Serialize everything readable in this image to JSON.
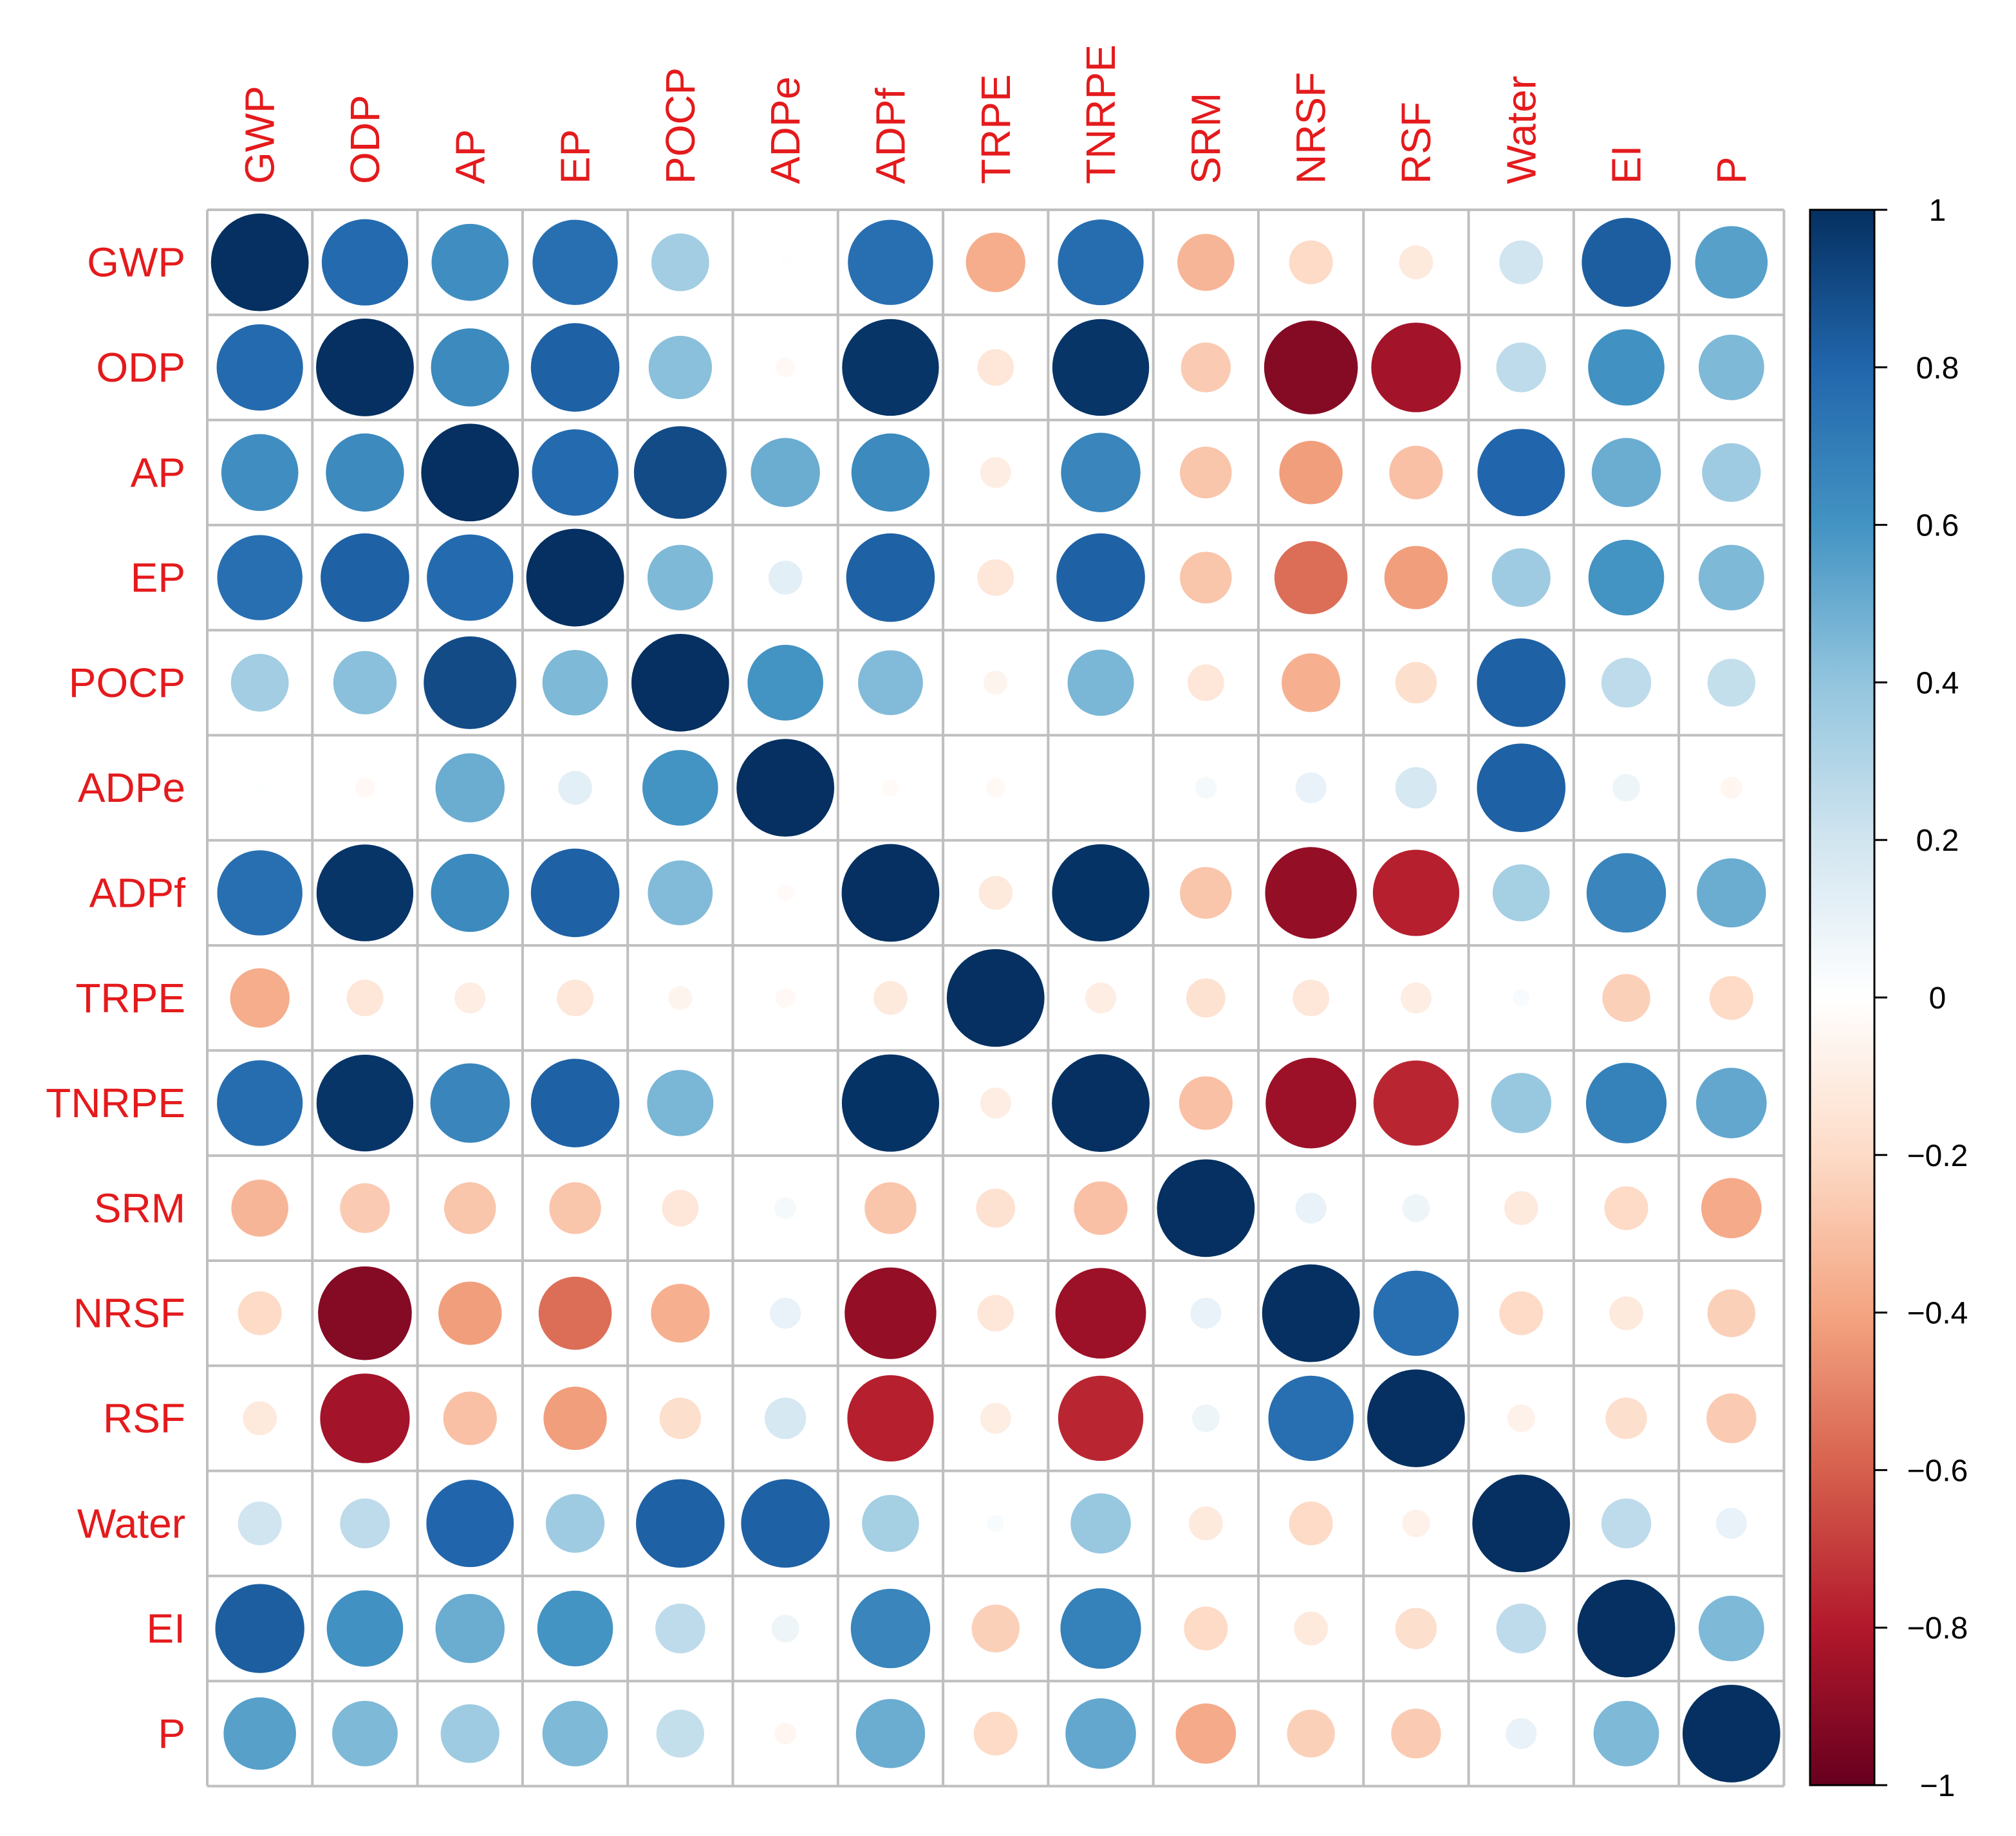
{
  "chart_data": {
    "type": "heatmap",
    "title": "",
    "xlabel": "",
    "ylabel": "",
    "variables": [
      "GWP",
      "ODP",
      "AP",
      "EP",
      "POCP",
      "ADPe",
      "ADPf",
      "TRPE",
      "TNRPE",
      "SRM",
      "NRSF",
      "RSF",
      "Water",
      "EI",
      "P"
    ],
    "matrix": [
      [
        1.0,
        0.78,
        0.62,
        0.76,
        0.35,
        0.01,
        0.76,
        -0.37,
        0.77,
        -0.34,
        -0.2,
        -0.12,
        0.2,
        0.83,
        0.55
      ],
      [
        0.78,
        1.0,
        0.64,
        0.82,
        0.42,
        -0.04,
        0.98,
        -0.14,
        0.98,
        -0.26,
        -0.92,
        -0.84,
        0.26,
        0.61,
        0.45
      ],
      [
        0.62,
        0.64,
        1.0,
        0.78,
        0.9,
        0.5,
        0.64,
        -0.1,
        0.66,
        -0.28,
        -0.42,
        -0.3,
        0.8,
        0.5,
        0.36
      ],
      [
        0.76,
        0.82,
        0.78,
        1.0,
        0.45,
        0.12,
        0.82,
        -0.14,
        0.82,
        -0.28,
        -0.56,
        -0.42,
        0.36,
        0.6,
        0.45
      ],
      [
        0.35,
        0.42,
        0.9,
        0.45,
        1.0,
        0.6,
        0.44,
        -0.06,
        0.46,
        -0.14,
        -0.36,
        -0.18,
        0.82,
        0.26,
        0.24
      ],
      [
        0.01,
        -0.04,
        0.5,
        0.12,
        0.6,
        1.0,
        -0.03,
        -0.04,
        0.0,
        0.05,
        0.1,
        0.18,
        0.82,
        0.08,
        -0.05
      ],
      [
        0.76,
        0.98,
        0.64,
        0.82,
        0.44,
        -0.03,
        1.0,
        -0.12,
        0.99,
        -0.28,
        -0.88,
        -0.78,
        0.34,
        0.66,
        0.5
      ],
      [
        -0.37,
        -0.14,
        -0.1,
        -0.14,
        -0.06,
        -0.04,
        -0.12,
        1.0,
        -0.1,
        -0.16,
        -0.14,
        -0.1,
        0.03,
        -0.24,
        -0.2
      ],
      [
        0.77,
        0.98,
        0.66,
        0.82,
        0.46,
        0.0,
        0.99,
        -0.1,
        1.0,
        -0.3,
        -0.86,
        -0.76,
        0.38,
        0.68,
        0.52
      ],
      [
        -0.34,
        -0.26,
        -0.28,
        -0.28,
        -0.14,
        0.05,
        -0.28,
        -0.16,
        -0.3,
        1.0,
        0.1,
        0.08,
        -0.12,
        -0.2,
        -0.38
      ],
      [
        -0.2,
        -0.92,
        -0.42,
        -0.56,
        -0.36,
        0.1,
        -0.88,
        -0.14,
        -0.86,
        0.1,
        1.0,
        0.76,
        -0.2,
        -0.12,
        -0.24
      ],
      [
        -0.12,
        -0.84,
        -0.3,
        -0.42,
        -0.18,
        0.18,
        -0.78,
        -0.1,
        -0.76,
        0.08,
        0.76,
        1.0,
        -0.08,
        -0.18,
        -0.26
      ],
      [
        0.2,
        0.26,
        0.8,
        0.36,
        0.82,
        0.82,
        0.34,
        0.03,
        0.38,
        -0.12,
        -0.2,
        -0.08,
        1.0,
        0.26,
        0.1
      ],
      [
        0.83,
        0.61,
        0.5,
        0.6,
        0.26,
        0.08,
        0.66,
        -0.24,
        0.68,
        -0.2,
        -0.12,
        -0.18,
        0.26,
        1.0,
        0.45
      ],
      [
        0.55,
        0.45,
        0.36,
        0.45,
        0.24,
        -0.05,
        0.5,
        -0.2,
        0.52,
        -0.38,
        -0.24,
        -0.26,
        0.1,
        0.45,
        1.0
      ]
    ],
    "color_scale": {
      "min": -1,
      "max": 1,
      "stops": [
        "#67001F",
        "#B2182B",
        "#D6604D",
        "#F4A582",
        "#FDDBC7",
        "#FFFFFF",
        "#D1E5F0",
        "#92C5DE",
        "#4393C3",
        "#2166AC",
        "#053061"
      ],
      "ticks": [
        1,
        0.8,
        0.6,
        0.4,
        0.2,
        0,
        -0.2,
        -0.4,
        -0.6,
        -0.8,
        -1
      ],
      "tick_labels": [
        "1",
        "0.8",
        "0.6",
        "0.4",
        "0.2",
        "0",
        "−0.2",
        "−0.4",
        "−0.6",
        "−0.8",
        "−1"
      ]
    },
    "label_color": "#E41A1C",
    "grid_color": "#BFBFBF",
    "grid": true,
    "legend": "right"
  }
}
